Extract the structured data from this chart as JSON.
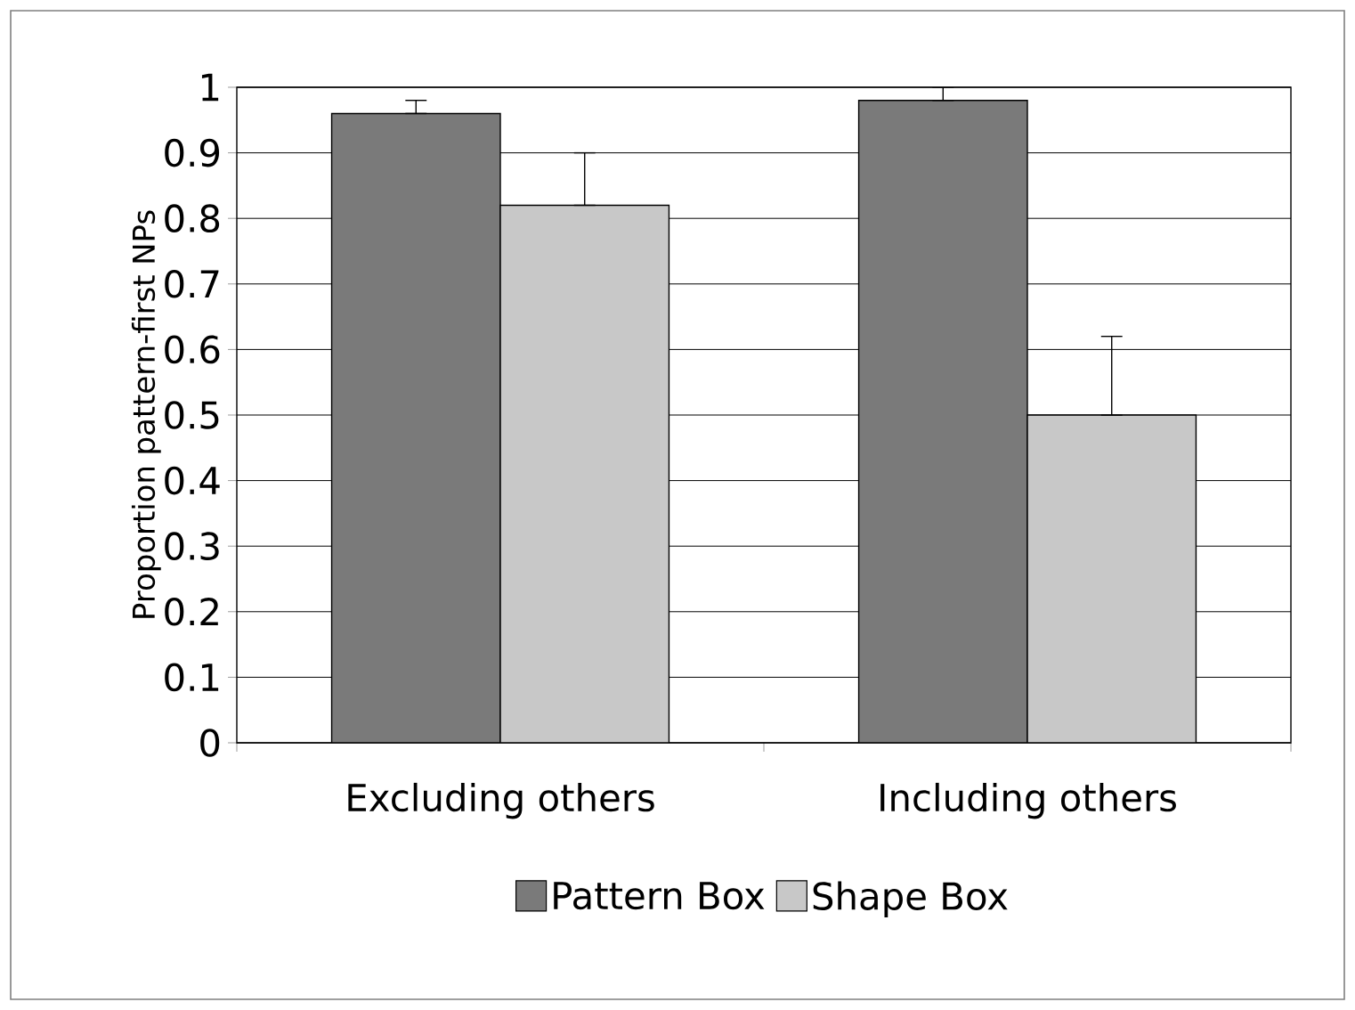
{
  "chart_data": {
    "type": "bar",
    "ylabel": "Proportion pattern-first NPs",
    "categories": [
      "Excluding others",
      "Including others"
    ],
    "series": [
      {
        "name": "Pattern Box",
        "color": "#7a7a7a",
        "values": [
          0.96,
          0.98
        ],
        "errors": [
          [
            0.96,
            0.98
          ],
          [
            0.98,
            1.0
          ]
        ]
      },
      {
        "name": "Shape Box",
        "color": "#c8c8c8",
        "values": [
          0.82,
          0.5
        ],
        "errors": [
          [
            0.82,
            0.9
          ],
          [
            0.5,
            0.62
          ]
        ]
      }
    ],
    "ylim": [
      0,
      1
    ],
    "yticks": [
      0,
      0.1,
      0.2,
      0.3,
      0.4,
      0.5,
      0.6,
      0.7,
      0.8,
      0.9,
      1
    ],
    "grid": "y",
    "legend": "bottom"
  }
}
